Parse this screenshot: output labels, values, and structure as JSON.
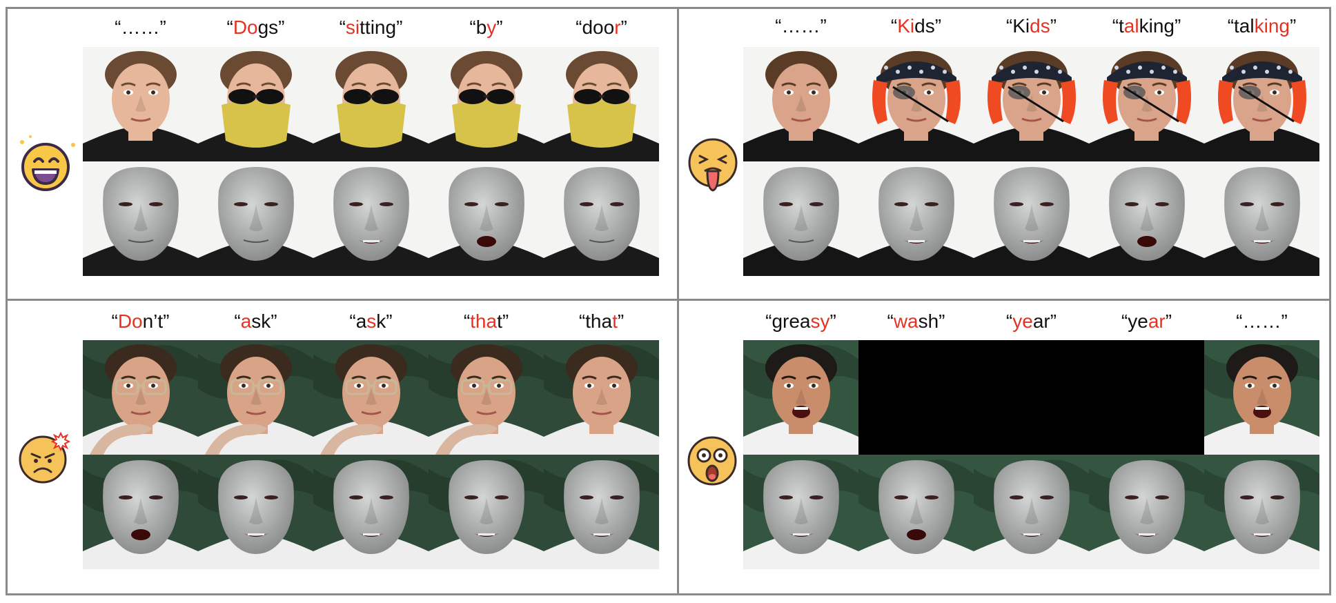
{
  "emotions": [
    "smiling-face",
    "disgusted-face",
    "angry-face",
    "shocked-face"
  ],
  "panels": [
    {
      "id": "p1",
      "emoji": "laughing",
      "captions": [
        [
          {
            "t": "“……”",
            "h": false
          }
        ],
        [
          {
            "t": "“",
            "h": false
          },
          {
            "t": "Do",
            "h": true
          },
          {
            "t": "gs”",
            "h": false
          }
        ],
        [
          {
            "t": "“",
            "h": false
          },
          {
            "t": "si",
            "h": true
          },
          {
            "t": "tting”",
            "h": false
          }
        ],
        [
          {
            "t": "“b",
            "h": false
          },
          {
            "t": "y",
            "h": true
          },
          {
            "t": "”",
            "h": false
          }
        ],
        [
          {
            "t": "“doo",
            "h": false
          },
          {
            "t": "r",
            "h": true
          },
          {
            "t": "”",
            "h": false
          }
        ]
      ],
      "photos": [
        "plain",
        "mask",
        "mask",
        "mask",
        "mask"
      ],
      "meshes": [
        "closed",
        "closed",
        "teeth",
        "open",
        "closed"
      ],
      "bg": "#f4f4f2",
      "colors": {
        "skin": "#e7b79b",
        "hair": "#6b4a33",
        "shirt": "#1a1a1a"
      }
    },
    {
      "id": "p2",
      "emoji": "disgusted",
      "captions": [
        [
          {
            "t": "“……”",
            "h": false
          }
        ],
        [
          {
            "t": "“",
            "h": false
          },
          {
            "t": "Ki",
            "h": true
          },
          {
            "t": "ds”",
            "h": false
          }
        ],
        [
          {
            "t": "“Ki",
            "h": false
          },
          {
            "t": "ds",
            "h": true
          },
          {
            "t": "”",
            "h": false
          }
        ],
        [
          {
            "t": "“t",
            "h": false
          },
          {
            "t": "al",
            "h": true
          },
          {
            "t": "king”",
            "h": false
          }
        ],
        [
          {
            "t": "“tal",
            "h": false
          },
          {
            "t": "king",
            "h": true
          },
          {
            "t": "”",
            "h": false
          }
        ]
      ],
      "photos": [
        "plain",
        "pirate",
        "pirate",
        "pirate",
        "pirate"
      ],
      "meshes": [
        "closed",
        "teeth",
        "teeth",
        "open",
        "teeth"
      ],
      "bg": "#f4f4f2",
      "colors": {
        "skin": "#d9a48a",
        "hair": "#5a3b26",
        "shirt": "#151515"
      }
    },
    {
      "id": "p3",
      "emoji": "angry",
      "captions": [
        [
          {
            "t": "“",
            "h": false
          },
          {
            "t": "Do",
            "h": true
          },
          {
            "t": "n’t”",
            "h": false
          }
        ],
        [
          {
            "t": "“",
            "h": false
          },
          {
            "t": "a",
            "h": true
          },
          {
            "t": "sk”",
            "h": false
          }
        ],
        [
          {
            "t": "“a",
            "h": false
          },
          {
            "t": "s",
            "h": true
          },
          {
            "t": "k”",
            "h": false
          }
        ],
        [
          {
            "t": "“",
            "h": false
          },
          {
            "t": "tha",
            "h": true
          },
          {
            "t": "t”",
            "h": false
          }
        ],
        [
          {
            "t": "“tha",
            "h": false
          },
          {
            "t": "t",
            "h": true
          },
          {
            "t": "”",
            "h": false
          }
        ]
      ],
      "photos": [
        "glasses",
        "glasses",
        "glasses",
        "glasses",
        "plain"
      ],
      "meshes": [
        "open",
        "teeth",
        "teeth",
        "teeth",
        "teeth"
      ],
      "bg": "#2f4a38",
      "colors": {
        "skin": "#d8a386",
        "hair": "#3b2a1e",
        "shirt": "#eeeeee"
      }
    },
    {
      "id": "p4",
      "emoji": "shocked",
      "captions": [
        [
          {
            "t": "“grea",
            "h": false
          },
          {
            "t": "sy",
            "h": true
          },
          {
            "t": "”",
            "h": false
          }
        ],
        [
          {
            "t": "“",
            "h": false
          },
          {
            "t": "wa",
            "h": true
          },
          {
            "t": "sh”",
            "h": false
          }
        ],
        [
          {
            "t": "“",
            "h": false
          },
          {
            "t": "ye",
            "h": true
          },
          {
            "t": "ar”",
            "h": false
          }
        ],
        [
          {
            "t": "“ye",
            "h": false
          },
          {
            "t": "ar",
            "h": true
          },
          {
            "t": "”",
            "h": false
          }
        ],
        [
          {
            "t": "“……”",
            "h": false
          }
        ]
      ],
      "photos": [
        "open",
        "black",
        "black",
        "black",
        "open"
      ],
      "meshes": [
        "teeth",
        "open",
        "teeth",
        "teeth",
        "teeth"
      ],
      "bg": "#34553f",
      "colors": {
        "skin": "#c98d6c",
        "hair": "#1d1a18",
        "shirt": "#f1f1f1"
      }
    }
  ]
}
